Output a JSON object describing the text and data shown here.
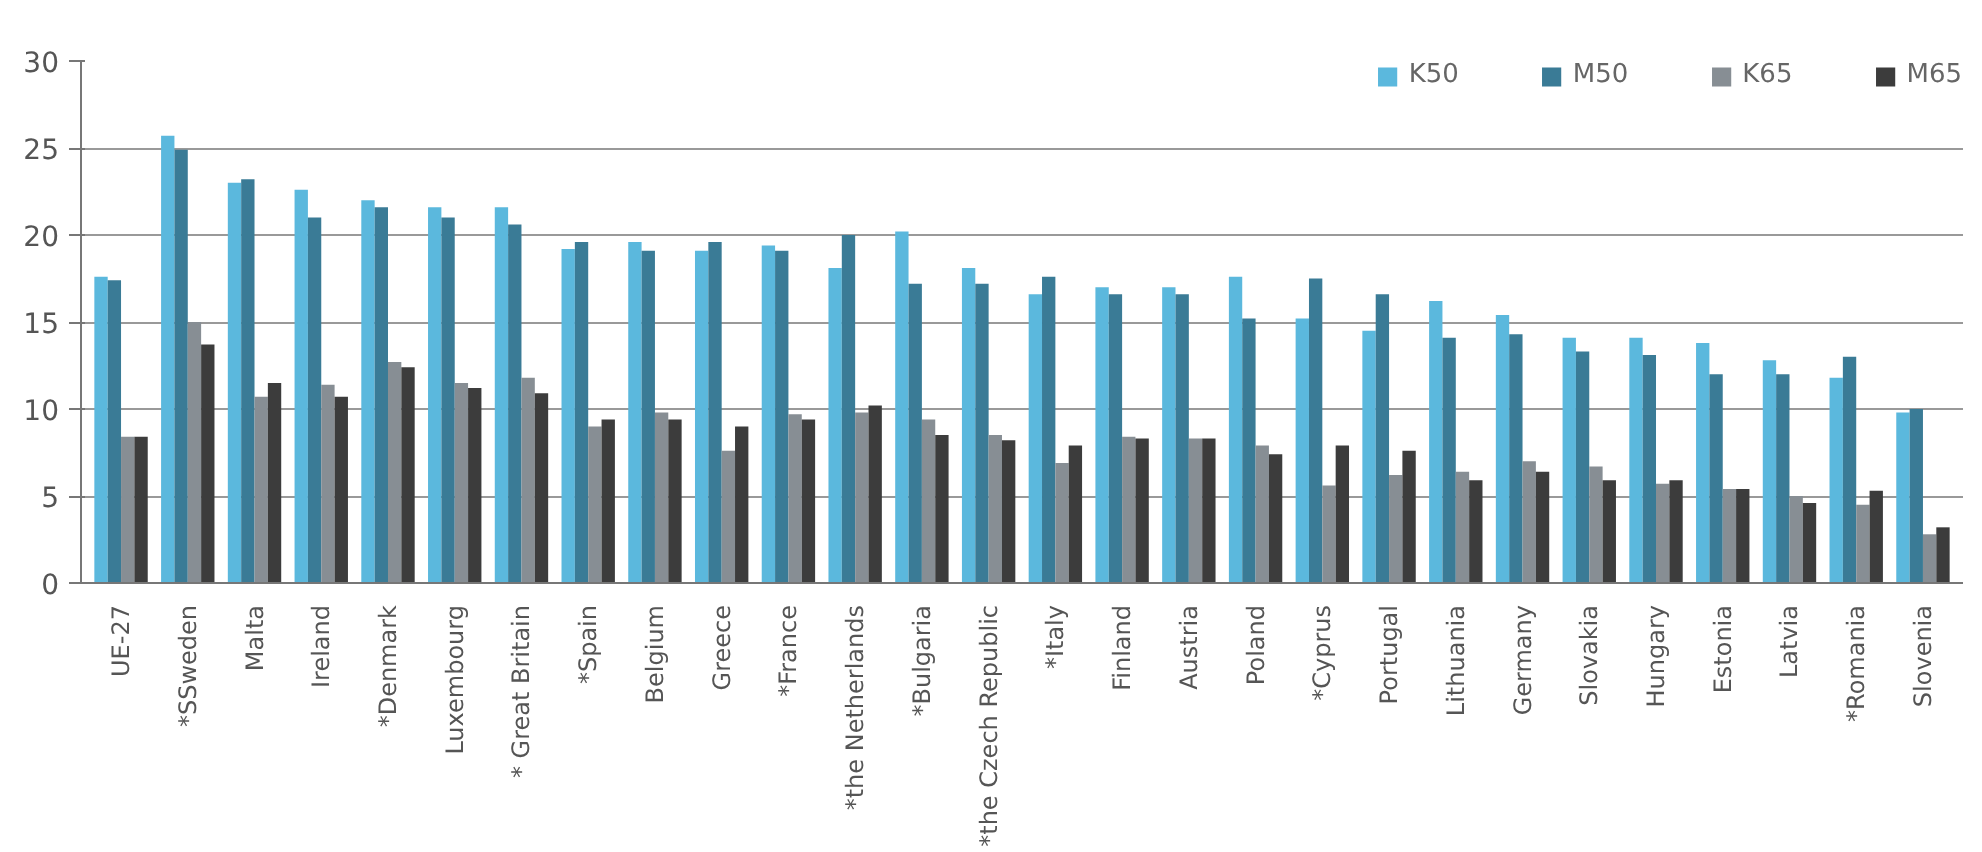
{
  "chart_data": {
    "type": "bar",
    "categories": [
      "UE-27",
      "*SSweden",
      "Malta",
      "Ireland",
      "*Denmark",
      "Luxembourg",
      "* Great Britain",
      "*Spain",
      "Belgium",
      "Greece",
      "*France",
      "*the Netherlands",
      "*Bulgaria",
      "*the Czech Republic",
      "*Italy",
      "Finland",
      "Austria",
      "Poland",
      "*Cyprus",
      "Portugal",
      "Lithuania",
      "Germany",
      "Slovakia",
      "Hungary",
      "Estonia",
      "Latvia",
      "*Romania",
      "Slovenia"
    ],
    "series": [
      {
        "name": "K50",
        "color": "#5bb8dd",
        "values": [
          17.6,
          25.7,
          23.0,
          22.6,
          22.0,
          21.6,
          21.6,
          19.2,
          19.6,
          19.1,
          19.4,
          18.1,
          20.2,
          18.1,
          16.6,
          17.0,
          17.0,
          17.6,
          15.2,
          14.5,
          16.2,
          15.4,
          14.1,
          14.1,
          13.8,
          12.8,
          11.8,
          9.8
        ]
      },
      {
        "name": "M50",
        "color": "#3a7b96",
        "values": [
          17.4,
          24.9,
          23.2,
          21.0,
          21.6,
          21.0,
          20.6,
          19.6,
          19.1,
          19.6,
          19.1,
          20.0,
          17.2,
          17.2,
          17.6,
          16.6,
          16.6,
          15.2,
          17.5,
          16.6,
          14.1,
          14.3,
          13.3,
          13.1,
          12.0,
          12.0,
          13.0,
          10.0
        ]
      },
      {
        "name": "K65",
        "color": "#878e94",
        "values": [
          8.4,
          15.0,
          10.7,
          11.4,
          12.7,
          11.5,
          11.8,
          9.0,
          9.8,
          7.6,
          9.7,
          9.8,
          9.4,
          8.5,
          6.9,
          8.4,
          8.3,
          7.9,
          5.6,
          6.2,
          6.4,
          7.0,
          6.7,
          5.7,
          5.4,
          5.0,
          4.5,
          2.8
        ]
      },
      {
        "name": "M65",
        "color": "#3c3c3c",
        "values": [
          8.4,
          13.7,
          11.5,
          10.7,
          12.4,
          11.2,
          10.9,
          9.4,
          9.4,
          9.0,
          9.4,
          10.2,
          8.5,
          8.2,
          7.9,
          8.3,
          8.3,
          7.4,
          7.9,
          7.6,
          5.9,
          6.4,
          5.9,
          5.9,
          5.4,
          4.6,
          5.3,
          3.2
        ]
      }
    ],
    "ylim": [
      0,
      30
    ],
    "yticks": [
      0,
      5,
      10,
      15,
      20,
      25,
      30
    ],
    "grid": "y",
    "legend": "top right"
  }
}
